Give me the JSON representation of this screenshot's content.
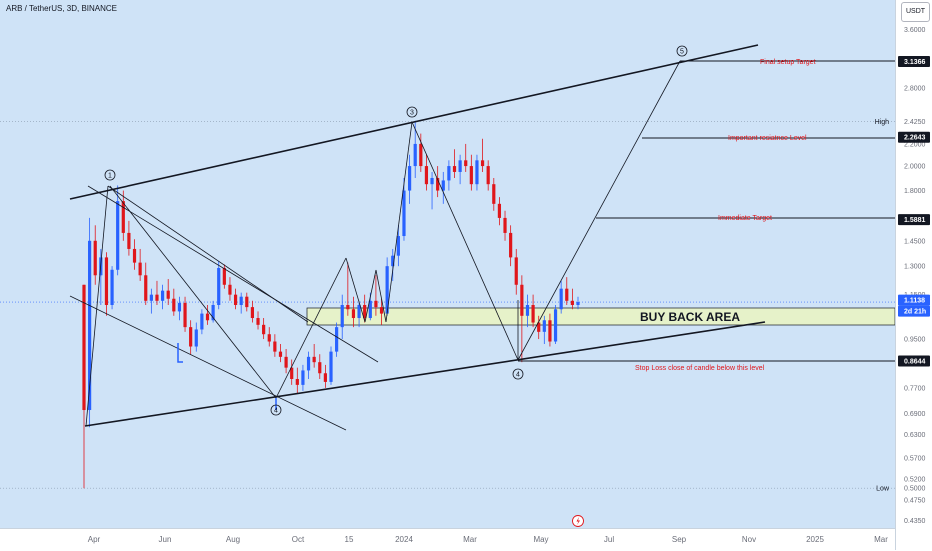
{
  "header": {
    "symbol_title": "ARB / TetherUS, 3D, BINANCE",
    "currency": "USDT"
  },
  "chart_data": {
    "type": "candlestick",
    "x_axis": {
      "tick_labels": [
        "Apr",
        "Jun",
        "Aug",
        "Oct",
        "15",
        "2024",
        "Mar",
        "May",
        "Jul",
        "Sep",
        "Nov",
        "2025",
        "Mar"
      ]
    },
    "y_axis": {
      "scale": "log",
      "tick_labels": [
        "3.6000",
        "2.8000",
        "2.2000",
        "2.0000",
        "1.8000",
        "1.4500",
        "1.3000",
        "1.1500",
        "0.9500",
        "0.7700",
        "0.6900",
        "0.6300",
        "0.5700",
        "0.5200",
        "0.4750",
        "0.4350"
      ],
      "price_tags": [
        {
          "value": "3.1366",
          "color": "#131722"
        },
        {
          "value": "2.2643",
          "color": "#131722"
        },
        {
          "value": "1.5881",
          "color": "#131722"
        },
        {
          "value": "1.1138",
          "color": "#2962ff"
        },
        {
          "value": "2d 21h",
          "color": "#2962ff"
        },
        {
          "value": "0.8644",
          "color": "#131722"
        }
      ],
      "high": {
        "label": "High",
        "value": "2.4250"
      },
      "low": {
        "label": "Low",
        "value": "0.5000"
      }
    },
    "candles": [
      {
        "o": 1.2,
        "h": 1.2,
        "l": 0.5,
        "c": 0.7
      },
      {
        "o": 0.7,
        "h": 1.6,
        "l": 0.65,
        "c": 1.45
      },
      {
        "o": 1.45,
        "h": 1.55,
        "l": 1.2,
        "c": 1.25
      },
      {
        "o": 1.25,
        "h": 1.4,
        "l": 1.1,
        "c": 1.35
      },
      {
        "o": 1.35,
        "h": 1.38,
        "l": 1.05,
        "c": 1.1
      },
      {
        "o": 1.1,
        "h": 1.3,
        "l": 1.08,
        "c": 1.28
      },
      {
        "o": 1.28,
        "h": 1.84,
        "l": 1.25,
        "c": 1.72
      },
      {
        "o": 1.72,
        "h": 1.8,
        "l": 1.45,
        "c": 1.5
      },
      {
        "o": 1.5,
        "h": 1.58,
        "l": 1.36,
        "c": 1.4
      },
      {
        "o": 1.4,
        "h": 1.46,
        "l": 1.28,
        "c": 1.32
      },
      {
        "o": 1.32,
        "h": 1.4,
        "l": 1.22,
        "c": 1.25
      },
      {
        "o": 1.25,
        "h": 1.32,
        "l": 1.1,
        "c": 1.12
      },
      {
        "o": 1.12,
        "h": 1.18,
        "l": 1.06,
        "c": 1.15
      },
      {
        "o": 1.15,
        "h": 1.22,
        "l": 1.1,
        "c": 1.12
      },
      {
        "o": 1.12,
        "h": 1.2,
        "l": 1.08,
        "c": 1.17
      },
      {
        "o": 1.17,
        "h": 1.23,
        "l": 1.1,
        "c": 1.13
      },
      {
        "o": 1.13,
        "h": 1.18,
        "l": 1.05,
        "c": 1.07
      },
      {
        "o": 1.07,
        "h": 1.14,
        "l": 1.03,
        "c": 1.11
      },
      {
        "o": 1.11,
        "h": 1.14,
        "l": 0.98,
        "c": 1.0
      },
      {
        "o": 1.0,
        "h": 1.03,
        "l": 0.89,
        "c": 0.92
      },
      {
        "o": 0.92,
        "h": 1.02,
        "l": 0.9,
        "c": 0.99
      },
      {
        "o": 0.99,
        "h": 1.08,
        "l": 0.97,
        "c": 1.06
      },
      {
        "o": 1.06,
        "h": 1.1,
        "l": 1.01,
        "c": 1.03
      },
      {
        "o": 1.03,
        "h": 1.12,
        "l": 1.02,
        "c": 1.1
      },
      {
        "o": 1.1,
        "h": 1.33,
        "l": 1.08,
        "c": 1.29
      },
      {
        "o": 1.29,
        "h": 1.31,
        "l": 1.18,
        "c": 1.2
      },
      {
        "o": 1.2,
        "h": 1.24,
        "l": 1.12,
        "c": 1.15
      },
      {
        "o": 1.15,
        "h": 1.18,
        "l": 1.08,
        "c": 1.1
      },
      {
        "o": 1.1,
        "h": 1.16,
        "l": 1.06,
        "c": 1.14
      },
      {
        "o": 1.14,
        "h": 1.16,
        "l": 1.07,
        "c": 1.09
      },
      {
        "o": 1.09,
        "h": 1.12,
        "l": 1.02,
        "c": 1.04
      },
      {
        "o": 1.04,
        "h": 1.07,
        "l": 0.99,
        "c": 1.01
      },
      {
        "o": 1.01,
        "h": 1.04,
        "l": 0.95,
        "c": 0.97
      },
      {
        "o": 0.97,
        "h": 1.0,
        "l": 0.92,
        "c": 0.94
      },
      {
        "o": 0.94,
        "h": 0.97,
        "l": 0.88,
        "c": 0.9
      },
      {
        "o": 0.9,
        "h": 0.93,
        "l": 0.86,
        "c": 0.88
      },
      {
        "o": 0.88,
        "h": 0.91,
        "l": 0.82,
        "c": 0.84
      },
      {
        "o": 0.84,
        "h": 0.87,
        "l": 0.78,
        "c": 0.8
      },
      {
        "o": 0.8,
        "h": 0.84,
        "l": 0.75,
        "c": 0.78
      },
      {
        "o": 0.78,
        "h": 0.85,
        "l": 0.76,
        "c": 0.83
      },
      {
        "o": 0.83,
        "h": 0.9,
        "l": 0.8,
        "c": 0.88
      },
      {
        "o": 0.88,
        "h": 0.93,
        "l": 0.84,
        "c": 0.86
      },
      {
        "o": 0.86,
        "h": 0.89,
        "l": 0.8,
        "c": 0.82
      },
      {
        "o": 0.82,
        "h": 0.85,
        "l": 0.77,
        "c": 0.79
      },
      {
        "o": 0.79,
        "h": 0.92,
        "l": 0.78,
        "c": 0.9
      },
      {
        "o": 0.9,
        "h": 1.02,
        "l": 0.88,
        "c": 1.0
      },
      {
        "o": 1.0,
        "h": 1.15,
        "l": 0.95,
        "c": 1.1
      },
      {
        "o": 1.1,
        "h": 1.32,
        "l": 1.05,
        "c": 1.08
      },
      {
        "o": 1.08,
        "h": 1.14,
        "l": 1.0,
        "c": 1.04
      },
      {
        "o": 1.04,
        "h": 1.12,
        "l": 1.0,
        "c": 1.1
      },
      {
        "o": 1.1,
        "h": 1.15,
        "l": 1.02,
        "c": 1.04
      },
      {
        "o": 1.04,
        "h": 1.16,
        "l": 1.03,
        "c": 1.12
      },
      {
        "o": 1.12,
        "h": 1.25,
        "l": 1.05,
        "c": 1.09
      },
      {
        "o": 1.09,
        "h": 1.13,
        "l": 1.01,
        "c": 1.06
      },
      {
        "o": 1.06,
        "h": 1.35,
        "l": 1.05,
        "c": 1.3
      },
      {
        "o": 1.3,
        "h": 1.4,
        "l": 1.22,
        "c": 1.36
      },
      {
        "o": 1.36,
        "h": 1.55,
        "l": 1.3,
        "c": 1.48
      },
      {
        "o": 1.48,
        "h": 1.9,
        "l": 1.45,
        "c": 1.8
      },
      {
        "o": 1.8,
        "h": 2.1,
        "l": 1.7,
        "c": 2.0
      },
      {
        "o": 2.0,
        "h": 2.43,
        "l": 1.9,
        "c": 2.2
      },
      {
        "o": 2.2,
        "h": 2.3,
        "l": 1.95,
        "c": 2.0
      },
      {
        "o": 2.0,
        "h": 2.1,
        "l": 1.8,
        "c": 1.85
      },
      {
        "o": 1.85,
        "h": 1.95,
        "l": 1.66,
        "c": 1.9
      },
      {
        "o": 1.9,
        "h": 2.0,
        "l": 1.75,
        "c": 1.8
      },
      {
        "o": 1.8,
        "h": 1.95,
        "l": 1.7,
        "c": 1.88
      },
      {
        "o": 1.88,
        "h": 2.05,
        "l": 1.8,
        "c": 2.0
      },
      {
        "o": 2.0,
        "h": 2.15,
        "l": 1.9,
        "c": 1.95
      },
      {
        "o": 1.95,
        "h": 2.1,
        "l": 1.85,
        "c": 2.05
      },
      {
        "o": 2.05,
        "h": 2.2,
        "l": 1.95,
        "c": 2.0
      },
      {
        "o": 2.0,
        "h": 2.1,
        "l": 1.8,
        "c": 1.85
      },
      {
        "o": 1.85,
        "h": 2.1,
        "l": 1.8,
        "c": 2.05
      },
      {
        "o": 2.05,
        "h": 2.25,
        "l": 1.95,
        "c": 2.0
      },
      {
        "o": 2.0,
        "h": 2.05,
        "l": 1.8,
        "c": 1.85
      },
      {
        "o": 1.85,
        "h": 1.9,
        "l": 1.65,
        "c": 1.7
      },
      {
        "o": 1.7,
        "h": 1.75,
        "l": 1.55,
        "c": 1.6
      },
      {
        "o": 1.6,
        "h": 1.65,
        "l": 1.45,
        "c": 1.5
      },
      {
        "o": 1.5,
        "h": 1.55,
        "l": 1.3,
        "c": 1.35
      },
      {
        "o": 1.35,
        "h": 1.4,
        "l": 1.15,
        "c": 1.2
      },
      {
        "o": 1.2,
        "h": 1.25,
        "l": 0.86,
        "c": 1.05
      },
      {
        "o": 1.05,
        "h": 1.15,
        "l": 1.0,
        "c": 1.1
      },
      {
        "o": 1.1,
        "h": 1.15,
        "l": 1.0,
        "c": 1.02
      },
      {
        "o": 1.02,
        "h": 1.05,
        "l": 0.95,
        "c": 0.98
      },
      {
        "o": 0.98,
        "h": 1.05,
        "l": 0.93,
        "c": 1.03
      },
      {
        "o": 1.03,
        "h": 1.06,
        "l": 0.92,
        "c": 0.94
      },
      {
        "o": 0.94,
        "h": 1.1,
        "l": 0.93,
        "c": 1.08
      },
      {
        "o": 1.08,
        "h": 1.22,
        "l": 1.06,
        "c": 1.18
      },
      {
        "o": 1.18,
        "h": 1.24,
        "l": 1.1,
        "c": 1.12
      },
      {
        "o": 1.12,
        "h": 1.18,
        "l": 1.08,
        "c": 1.1
      },
      {
        "o": 1.1,
        "h": 1.14,
        "l": 1.08,
        "c": 1.114
      }
    ]
  },
  "annotations": {
    "wave_labels": [
      "1",
      "3",
      "5",
      "4",
      "4"
    ],
    "final_target_label": "Final setup Target",
    "resistance_label": "Important resiatnce Level",
    "immediate_target_label": "Immediate Target",
    "buyback_label": "BUY BACK AREA",
    "stop_loss_label": "Stop Loss close of candle below this level"
  },
  "colors": {
    "bull": "#2962ff",
    "bear": "#e0161b",
    "buyback_zone": "#e6f2c9",
    "background": "#cfe3f7"
  }
}
